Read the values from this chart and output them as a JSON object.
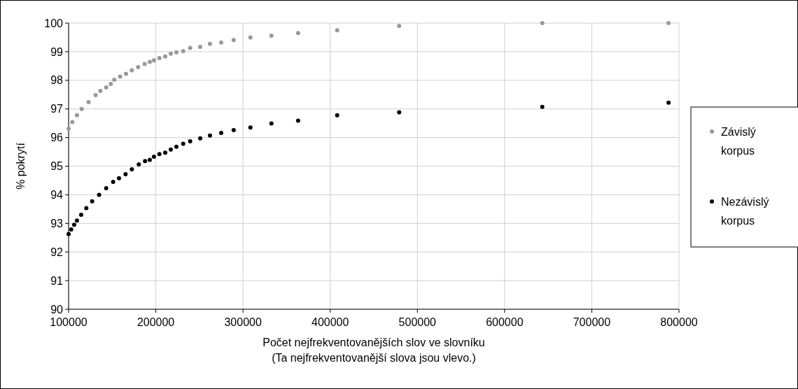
{
  "chart_data": {
    "type": "scatter",
    "xlabel": "Počet nejfrekventovanějších slov ve slovníku\n(Ta nejfrekventovanější slova jsou vlevo.)",
    "ylabel": "% pokrytí",
    "xlim": [
      100000,
      800000
    ],
    "xticks": [
      100000,
      200000,
      300000,
      400000,
      500000,
      600000,
      700000,
      800000
    ],
    "ylim": [
      90,
      100
    ],
    "yticks": [
      90,
      91,
      92,
      93,
      94,
      95,
      96,
      97,
      98,
      99,
      100
    ],
    "grid": true,
    "legend": "right",
    "marker": "circle",
    "series": [
      {
        "name": "Závislý korpus",
        "color": "#999999",
        "x": [
          100000,
          104300,
          109600,
          115000,
          123000,
          131000,
          136400,
          143100,
          148400,
          152400,
          159100,
          165800,
          172500,
          179700,
          187200,
          193100,
          197900,
          204100,
          210800,
          217200,
          223600,
          231400,
          239400,
          250900,
          262100,
          275000,
          289300,
          308500,
          332600,
          363200,
          408000,
          479100,
          643200,
          788000
        ],
        "values": [
          96.31,
          96.54,
          96.78,
          97.0,
          97.24,
          97.48,
          97.63,
          97.75,
          97.87,
          98.02,
          98.13,
          98.23,
          98.35,
          98.46,
          98.57,
          98.64,
          98.7,
          98.78,
          98.83,
          98.93,
          98.98,
          99.02,
          99.13,
          99.17,
          99.27,
          99.32,
          99.41,
          99.5,
          99.56,
          99.65,
          99.75,
          99.9,
          100.0,
          100.0
        ]
      },
      {
        "name": "Nezávislý korpus",
        "color": "#000000",
        "x": [
          100000,
          103000,
          106400,
          109600,
          114400,
          120300,
          127000,
          135000,
          143100,
          151100,
          157800,
          165300,
          172500,
          180500,
          187700,
          193100,
          197900,
          204100,
          210800,
          217200,
          223600,
          231400,
          239400,
          250900,
          262100,
          275000,
          289300,
          308500,
          332600,
          363200,
          408000,
          479100,
          643200,
          788000
        ],
        "values": [
          92.63,
          92.79,
          92.95,
          93.1,
          93.3,
          93.53,
          93.77,
          94.0,
          94.23,
          94.45,
          94.58,
          94.72,
          94.89,
          95.06,
          95.18,
          95.22,
          95.33,
          95.42,
          95.47,
          95.58,
          95.68,
          95.78,
          95.87,
          95.97,
          96.07,
          96.16,
          96.26,
          96.35,
          96.49,
          96.59,
          96.78,
          96.88,
          97.07,
          97.22
        ]
      }
    ]
  }
}
